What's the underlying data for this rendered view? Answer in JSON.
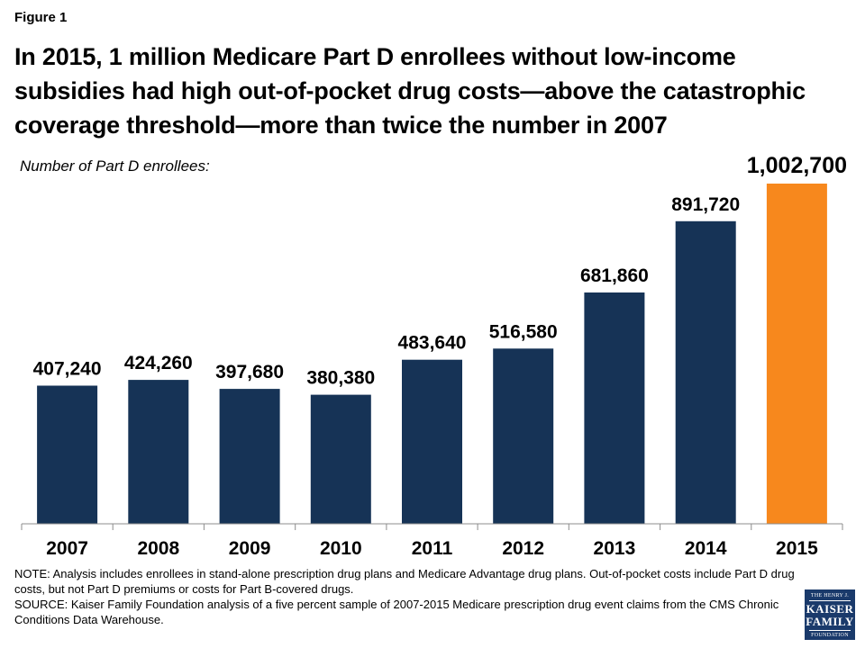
{
  "figure_label": "Figure 1",
  "title": "In 2015, 1 million Medicare Part D enrollees without low-income subsidies had high out-of-pocket drug costs—above the catastrophic coverage threshold—more than twice the number in 2007",
  "ylabel": "Number of Part D enrollees:",
  "note": "NOTE: Analysis includes enrollees in stand-alone prescription drug plans and Medicare Advantage drug plans. Out-of-pocket costs include Part D drug costs, but not Part D premiums or costs for Part B-covered drugs.",
  "source": "SOURCE: Kaiser Family Foundation analysis of a five percent sample of 2007-2015 Medicare prescription drug event claims from the CMS Chronic Conditions Data Warehouse.",
  "logo": {
    "line1": "THE HENRY J.",
    "line2": "KAISER",
    "line3": "FAMILY",
    "line4": "FOUNDATION"
  },
  "colors": {
    "bar": "#163356",
    "highlight": "#f7881d"
  },
  "chart_data": {
    "type": "bar",
    "categories": [
      "2007",
      "2008",
      "2009",
      "2010",
      "2011",
      "2012",
      "2013",
      "2014",
      "2015"
    ],
    "values": [
      407240,
      424260,
      397680,
      380380,
      483640,
      516580,
      681860,
      891720,
      1002700
    ],
    "labels": [
      "407,240",
      "424,260",
      "397,680",
      "380,380",
      "483,640",
      "516,580",
      "681,860",
      "891,720",
      "1,002,700"
    ],
    "highlight_index": 8,
    "ylim": [
      0,
      1002700
    ],
    "grid": false,
    "legend": "none"
  }
}
